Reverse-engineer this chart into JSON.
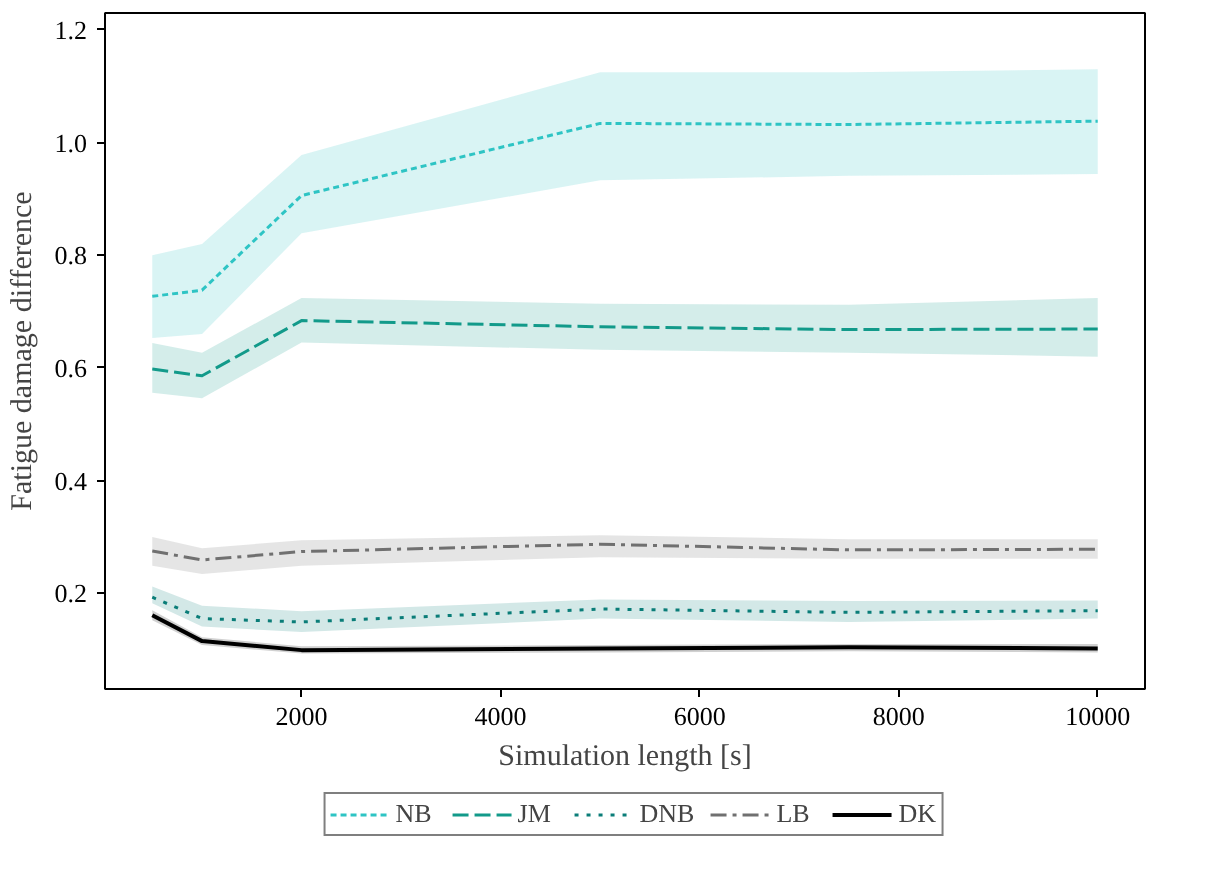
{
  "chart_data": {
    "type": "line",
    "xlabel": "Simulation length [s]",
    "ylabel": "Fatigue damage difference",
    "x": [
      500,
      1000,
      2000,
      5000,
      7500,
      10000
    ],
    "xlim": [
      25,
      10475
    ],
    "ylim": [
      0.03,
      1.23
    ],
    "xticks": [
      2000,
      4000,
      6000,
      8000,
      10000
    ],
    "yticks": [
      {
        "value": 0.2,
        "label": "0.2"
      },
      {
        "value": 0.4,
        "label": "0.4"
      },
      {
        "value": 0.6,
        "label": "0.6"
      },
      {
        "value": 0.8,
        "label": "0.8"
      },
      {
        "value": 1.0,
        "label": "1.0"
      },
      {
        "value": 1.2,
        "label": "1.2"
      }
    ],
    "grid": false,
    "legend": "bottom",
    "series": [
      {
        "name": "NB",
        "color": "#2ec4c4",
        "line_style": "dotted",
        "values": [
          0.727,
          0.738,
          0.906,
          1.034,
          1.032,
          1.038
        ],
        "lower": [
          0.653,
          0.66,
          0.839,
          0.933,
          0.941,
          0.944
        ],
        "upper": [
          0.8,
          0.82,
          0.978,
          1.125,
          1.125,
          1.13
        ]
      },
      {
        "name": "JM",
        "color": "#129a8a",
        "line_style": "dashed",
        "values": [
          0.598,
          0.586,
          0.684,
          0.673,
          0.668,
          0.669
        ],
        "lower": [
          0.556,
          0.546,
          0.645,
          0.632,
          0.627,
          0.62
        ],
        "upper": [
          0.644,
          0.627,
          0.724,
          0.714,
          0.712,
          0.724
        ]
      },
      {
        "name": "DNB",
        "color": "#0a7d78",
        "line_style": "loosely dotted",
        "values": [
          0.193,
          0.155,
          0.149,
          0.172,
          0.166,
          0.169
        ],
        "lower": [
          0.182,
          0.141,
          0.131,
          0.155,
          0.149,
          0.155
        ],
        "upper": [
          0.212,
          0.178,
          0.168,
          0.189,
          0.186,
          0.187
        ]
      },
      {
        "name": "LB",
        "color": "#707070",
        "line_style": "dashdot",
        "values": [
          0.275,
          0.259,
          0.274,
          0.287,
          0.277,
          0.278
        ],
        "lower": [
          0.249,
          0.234,
          0.249,
          0.264,
          0.261,
          0.261
        ],
        "upper": [
          0.3,
          0.28,
          0.294,
          0.303,
          0.296,
          0.296
        ]
      },
      {
        "name": "DK",
        "color": "#000000",
        "line_style": "solid",
        "values": [
          0.161,
          0.115,
          0.099,
          0.102,
          0.104,
          0.102
        ],
        "lower": [
          0.152,
          0.108,
          0.093,
          0.095,
          0.097,
          0.095
        ],
        "upper": [
          0.17,
          0.122,
          0.106,
          0.108,
          0.11,
          0.11
        ]
      }
    ]
  }
}
